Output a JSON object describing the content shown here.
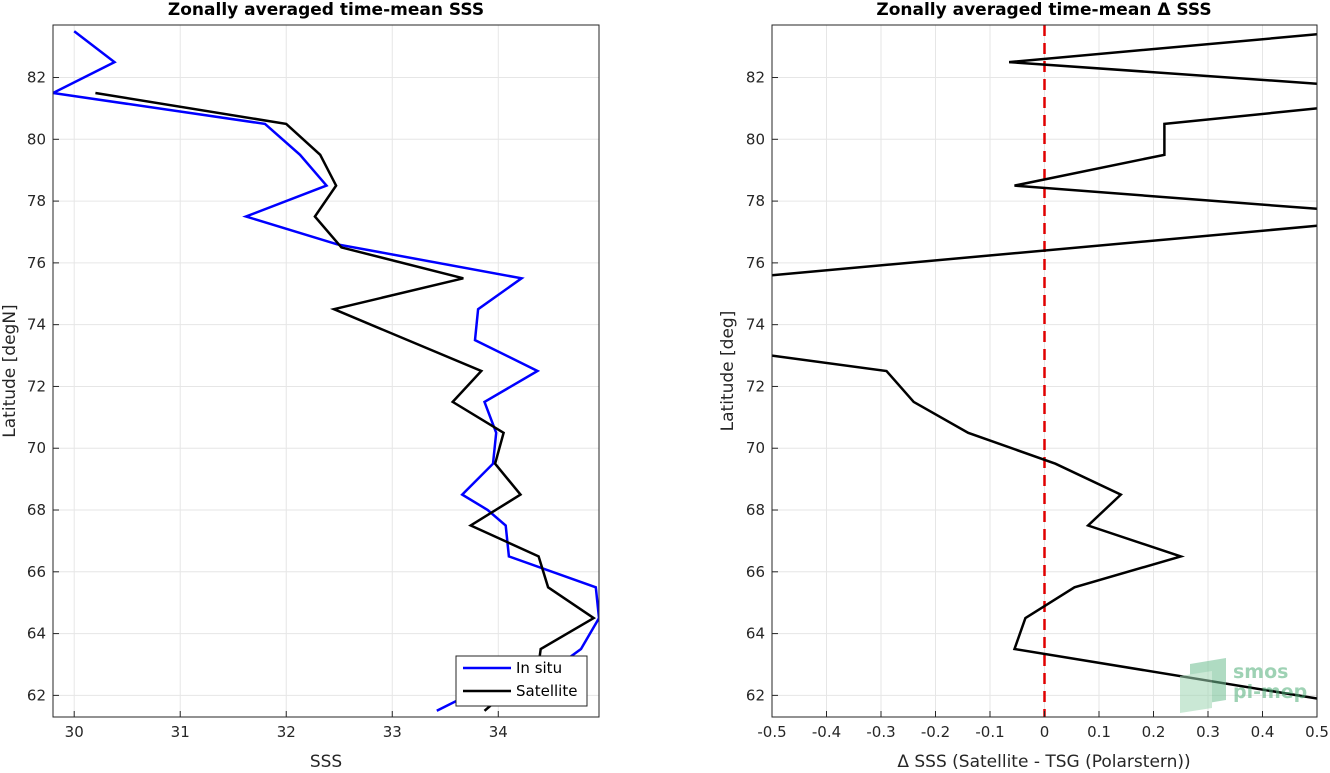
{
  "chart_data": [
    {
      "type": "line",
      "title": "Zonally averaged time-mean SSS",
      "xlabel": "SSS",
      "ylabel": "Latitude [degN]",
      "xlim": [
        29.8,
        34.95
      ],
      "ylim": [
        61.3,
        83.7
      ],
      "xticks": [
        30,
        31,
        32,
        33,
        34
      ],
      "yticks": [
        62,
        64,
        66,
        68,
        70,
        72,
        74,
        76,
        78,
        80,
        82
      ],
      "grid": true,
      "legend": "bottom-right",
      "series": [
        {
          "name": "In situ",
          "color": "#0000ff",
          "points": [
            [
              30.0,
              83.5
            ],
            [
              30.38,
              82.5
            ],
            [
              29.8,
              81.5
            ],
            [
              31.8,
              80.5
            ],
            [
              32.13,
              79.5
            ],
            [
              32.38,
              78.5
            ],
            [
              31.62,
              77.5
            ],
            [
              32.48,
              76.6
            ],
            [
              34.22,
              75.5
            ],
            [
              33.81,
              74.5
            ],
            [
              33.78,
              73.5
            ],
            [
              34.37,
              72.5
            ],
            [
              33.87,
              71.5
            ],
            [
              33.98,
              70.5
            ],
            [
              33.95,
              69.5
            ],
            [
              33.66,
              68.5
            ],
            [
              33.9,
              68.0
            ],
            [
              34.07,
              67.5
            ],
            [
              34.1,
              66.5
            ],
            [
              34.92,
              65.5
            ],
            [
              34.95,
              64.5
            ],
            [
              34.78,
              63.5
            ],
            [
              34.58,
              63.0
            ],
            [
              33.71,
              62.0
            ],
            [
              33.42,
              61.5
            ]
          ]
        },
        {
          "name": "Satellite",
          "color": "#000000",
          "points": [
            [
              30.2,
              81.5
            ],
            [
              32.0,
              80.5
            ],
            [
              32.32,
              79.5
            ],
            [
              32.47,
              78.5
            ],
            [
              32.27,
              77.5
            ],
            [
              32.52,
              76.5
            ],
            [
              33.67,
              75.5
            ],
            [
              32.45,
              74.5
            ],
            [
              33.84,
              72.5
            ],
            [
              33.57,
              71.5
            ],
            [
              34.05,
              70.5
            ],
            [
              33.97,
              69.5
            ],
            [
              34.21,
              68.5
            ],
            [
              33.74,
              67.5
            ],
            [
              34.38,
              66.5
            ],
            [
              34.47,
              65.5
            ],
            [
              34.9,
              64.5
            ],
            [
              34.4,
              63.5
            ],
            [
              34.38,
              63.0
            ],
            [
              33.87,
              61.5
            ]
          ]
        }
      ]
    },
    {
      "type": "line",
      "title": "Zonally averaged time-mean Δ SSS",
      "xlabel": "Δ SSS (Satellite - TSG (Polarstern))",
      "ylabel": "Latitude [deg]",
      "xlim": [
        -0.5,
        0.5
      ],
      "ylim": [
        61.3,
        83.7
      ],
      "xticks": [
        -0.5,
        -0.4,
        -0.3,
        -0.2,
        -0.1,
        0,
        0.1,
        0.2,
        0.3,
        0.4,
        0.5
      ],
      "xtick_labels": [
        "-0.5",
        "-0.4",
        "-0.3",
        "-0.2",
        "-0.1",
        "0",
        "0.1",
        "0.2",
        "0.3",
        "0.4",
        "0.5"
      ],
      "yticks": [
        62,
        64,
        66,
        68,
        70,
        72,
        74,
        76,
        78,
        80,
        82
      ],
      "grid": true,
      "reference_line": {
        "x": 0,
        "color": "#e00000",
        "style": "dashed"
      },
      "series": [
        {
          "name": "",
          "color": "#000000",
          "segments": [
            [
              [
                0.5,
                83.4
              ],
              [
                -0.065,
                82.5
              ],
              [
                0.5,
                81.8
              ]
            ],
            [
              [
                0.5,
                81.0
              ],
              [
                0.22,
                80.5
              ],
              [
                0.22,
                79.5
              ],
              [
                -0.055,
                78.5
              ],
              [
                0.5,
                77.75
              ]
            ],
            [
              [
                0.5,
                77.2
              ],
              [
                -0.5,
                75.6
              ]
            ],
            [
              [
                -0.5,
                73.0
              ],
              [
                -0.29,
                72.5
              ],
              [
                -0.24,
                71.5
              ],
              [
                -0.14,
                70.5
              ],
              [
                0.02,
                69.5
              ],
              [
                0.14,
                68.5
              ],
              [
                0.08,
                67.5
              ],
              [
                0.25,
                66.5
              ],
              [
                0.055,
                65.5
              ],
              [
                -0.035,
                64.5
              ],
              [
                -0.055,
                63.5
              ],
              [
                0.5,
                61.9
              ]
            ]
          ]
        }
      ]
    }
  ],
  "watermark": {
    "line1": "smos",
    "line2": "pi-mep"
  }
}
